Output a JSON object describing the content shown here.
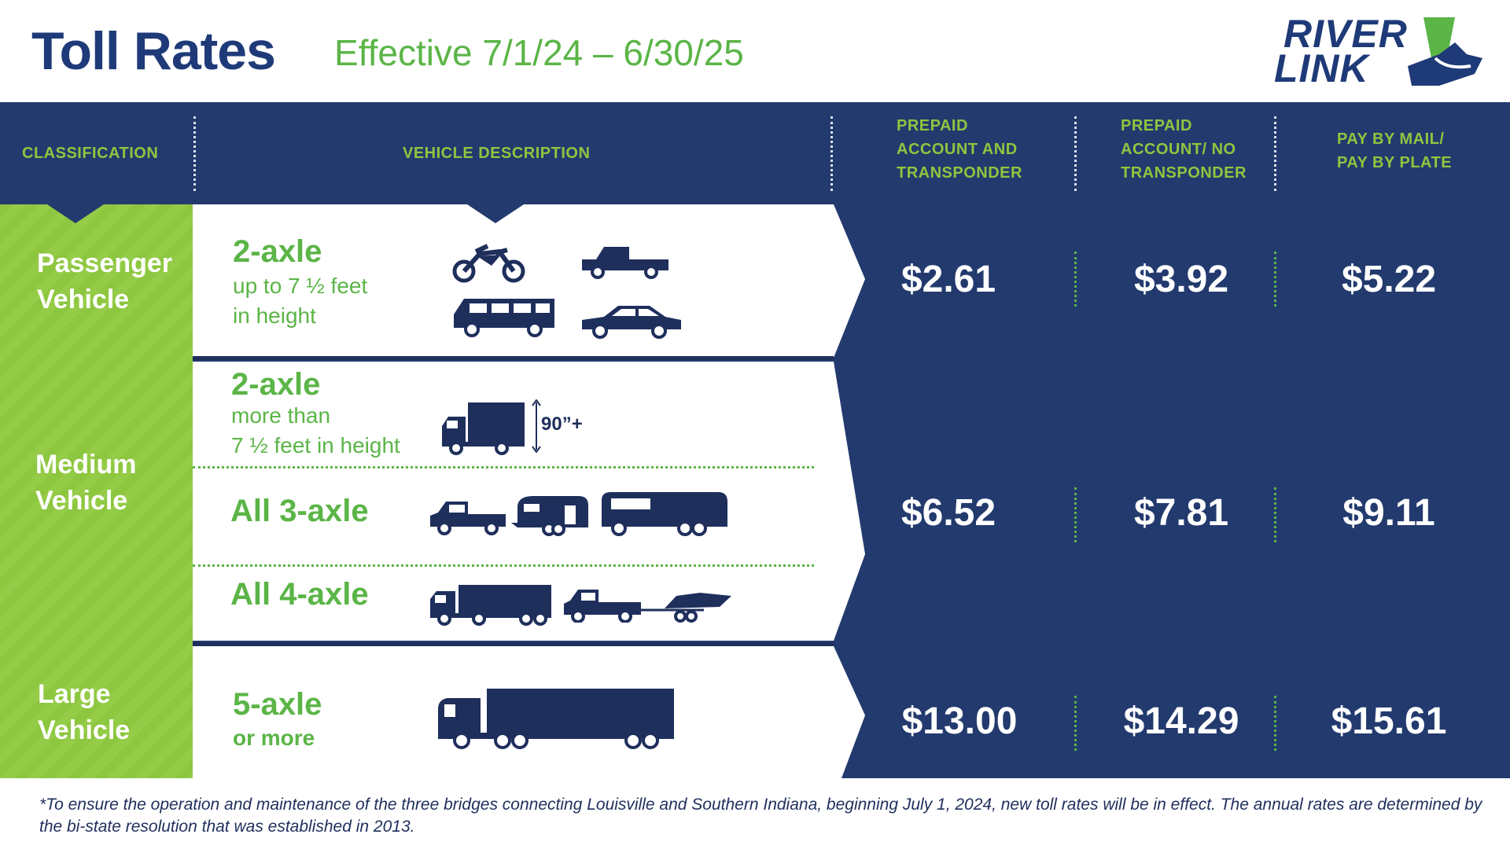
{
  "header": {
    "title": "Toll Rates",
    "effective": "Effective  7/1/24 – 6/30/25",
    "logo_line1": "RIVER",
    "logo_line2": "LINK"
  },
  "columns": {
    "classification": "CLASSIFICATION",
    "description": "VEHICLE DESCRIPTION",
    "col1": [
      "PREPAID",
      "ACCOUNT AND",
      "TRANSPONDER"
    ],
    "col2": [
      "PREPAID",
      "ACCOUNT/ NO",
      "TRANSPONDER"
    ],
    "col3": [
      "PAY BY MAIL/",
      "PAY BY PLATE"
    ]
  },
  "classes": {
    "passenger": [
      "Passenger",
      "Vehicle"
    ],
    "medium": [
      "Medium",
      "Vehicle"
    ],
    "large": [
      "Large",
      "Vehicle"
    ]
  },
  "descriptions": {
    "passenger_axle": "2-axle",
    "passenger_sub": [
      "up to 7 ½ feet",
      "in height"
    ],
    "medium2_axle": "2-axle",
    "medium2_sub": [
      "more than",
      "7 ½ feet in height"
    ],
    "height_label": "90”+",
    "medium3": "All 3-axle",
    "medium4": "All 4-axle",
    "large_axle": "5-axle",
    "large_sub": "or more"
  },
  "rates": {
    "passenger": [
      "$2.61",
      "$3.92",
      "$5.22"
    ],
    "medium": [
      "$6.52",
      "$7.81",
      "$9.11"
    ],
    "large": [
      "$13.00",
      "$14.29",
      "$15.61"
    ]
  },
  "footnote": "*To ensure the operation and maintenance of the three bridges connecting Louisville and Southern Indiana, beginning July 1, 2024, new toll rates will be in effect. The annual rates are determined by the bi-state resolution that was established in 2013.",
  "colors": {
    "navy": "#233a6e",
    "dark_navy": "#1f2f5c",
    "green": "#8dc63f",
    "accent_green": "#5bb547",
    "title_blue": "#1f3a78"
  }
}
